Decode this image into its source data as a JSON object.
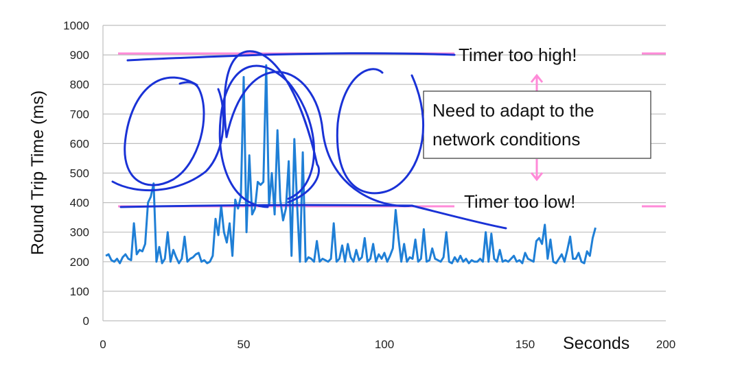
{
  "chart_data": {
    "type": "line",
    "xlabel": "Seconds",
    "ylabel": "Round Trip Time (ms)",
    "xlim": [
      0,
      200
    ],
    "ylim": [
      0,
      1000
    ],
    "xticks": [
      "0",
      "50",
      "100",
      "150",
      "200"
    ],
    "yticks": [
      "0",
      "100",
      "200",
      "300",
      "400",
      "500",
      "600",
      "700",
      "800",
      "900",
      "1000"
    ],
    "grid": "horizontal",
    "line_color": "#1f7fd6",
    "series": [
      {
        "x": [
          1,
          2,
          3,
          4,
          5,
          6,
          7,
          8,
          9,
          10,
          11,
          12,
          13,
          14,
          15,
          16,
          17,
          18,
          19,
          20,
          21,
          22,
          23,
          24,
          25,
          26,
          27,
          28,
          29,
          30,
          31,
          32,
          33,
          34,
          35,
          36,
          37,
          38,
          39,
          40,
          41,
          42,
          43,
          44,
          45,
          46,
          47,
          48,
          49,
          50,
          51,
          52,
          53,
          54,
          55,
          56,
          57,
          58,
          59,
          60,
          61,
          62,
          63,
          64,
          65,
          66,
          67,
          68,
          69,
          70,
          71,
          72,
          73,
          74,
          75,
          76,
          77,
          78,
          79,
          80,
          81,
          82,
          83,
          84,
          85,
          86,
          87,
          88,
          89,
          90,
          91,
          92,
          93,
          94,
          95,
          96,
          97,
          98,
          99,
          100,
          101,
          102,
          103,
          104,
          105,
          106,
          107,
          108,
          109,
          110,
          111,
          112,
          113,
          114,
          115,
          116,
          117,
          118,
          119,
          120,
          121,
          122,
          123,
          124,
          125,
          126,
          127,
          128,
          129,
          130,
          131,
          132,
          133,
          134,
          135,
          136,
          137,
          138,
          139,
          140,
          141,
          142,
          143,
          144,
          145,
          146,
          147,
          148,
          149,
          150,
          151,
          152,
          153,
          154,
          155,
          156,
          157,
          158,
          159,
          160,
          161,
          162,
          163,
          164,
          165,
          166,
          167,
          168,
          169,
          170,
          171,
          172,
          173,
          174,
          175
        ],
        "y": [
          220,
          225,
          205,
          200,
          210,
          195,
          215,
          225,
          210,
          205,
          330,
          225,
          240,
          235,
          260,
          400,
          420,
          465,
          200,
          250,
          195,
          210,
          300,
          200,
          240,
          215,
          195,
          210,
          285,
          200,
          210,
          215,
          225,
          230,
          200,
          205,
          195,
          200,
          220,
          345,
          290,
          390,
          300,
          265,
          330,
          220,
          410,
          380,
          420,
          825,
          300,
          560,
          360,
          380,
          470,
          460,
          470,
          865,
          390,
          500,
          360,
          645,
          410,
          340,
          380,
          540,
          220,
          615,
          390,
          200,
          570,
          200,
          215,
          210,
          200,
          270,
          200,
          210,
          205,
          200,
          210,
          330,
          200,
          210,
          255,
          200,
          260,
          215,
          200,
          240,
          205,
          215,
          280,
          200,
          210,
          260,
          200,
          225,
          210,
          230,
          200,
          220,
          245,
          375,
          280,
          200,
          260,
          200,
          215,
          210,
          275,
          200,
          210,
          310,
          200,
          205,
          245,
          210,
          205,
          200,
          215,
          300,
          200,
          195,
          215,
          200,
          220,
          200,
          210,
          195,
          205,
          200,
          200,
          210,
          200,
          300,
          200,
          295,
          210,
          200,
          240,
          200,
          205,
          200,
          210,
          220,
          200,
          205,
          195,
          230,
          210,
          205,
          200,
          270,
          280,
          260,
          325,
          210,
          275,
          200,
          195,
          210,
          225,
          200,
          240,
          285,
          210,
          210,
          230,
          200,
          195,
          235,
          220,
          280,
          315
        ]
      }
    ],
    "annotations": [
      "Timer too high!",
      "Need to adapt to the",
      "network conditions",
      "Timer too low!"
    ]
  }
}
